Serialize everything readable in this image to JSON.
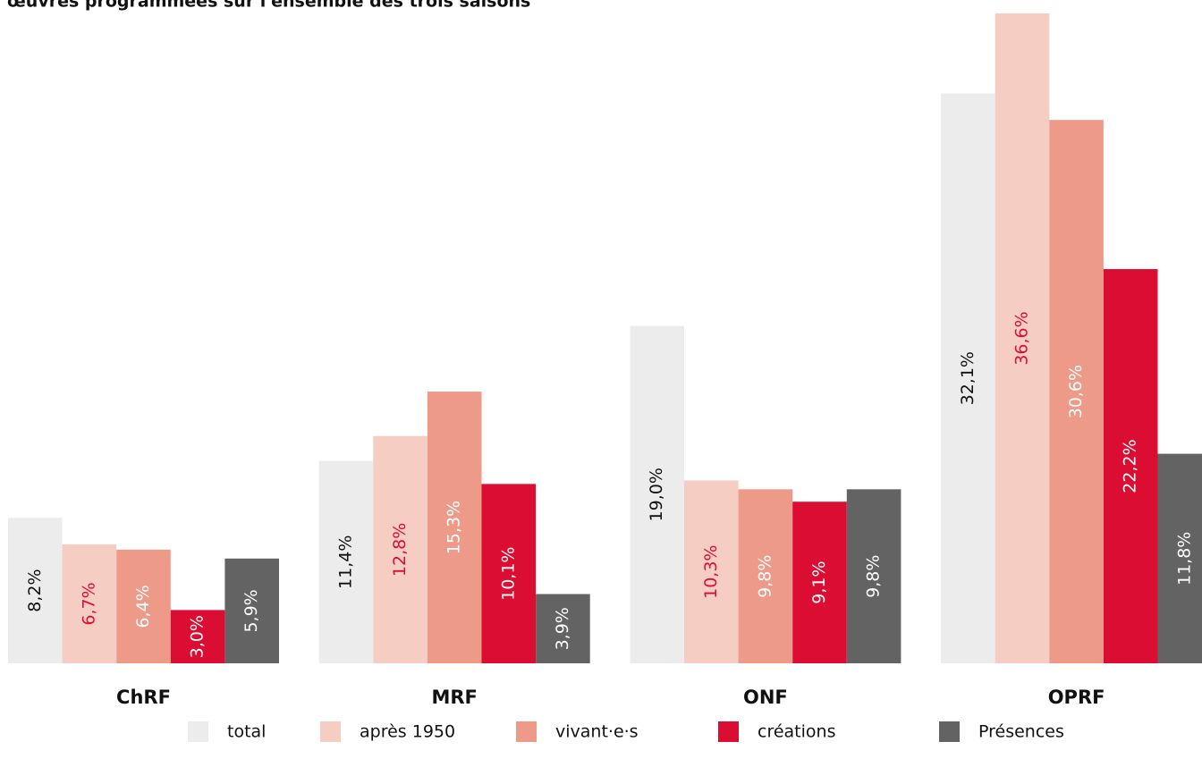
{
  "chart_data": {
    "type": "bar",
    "title": "œuvres programmées sur l'ensemble des trois saisons",
    "categories": [
      "ChRF",
      "MRF",
      "ONF",
      "OPRF"
    ],
    "series": [
      {
        "name": "total",
        "color": "#ececec",
        "label_color": "#111111",
        "values": [
          8.2,
          11.4,
          19.0,
          32.1
        ],
        "value_labels": [
          "8,2%",
          "11,4%",
          "19,0%",
          "32,1%"
        ]
      },
      {
        "name": "après 1950",
        "color": "#f6cdc2",
        "label_color": "#dc0d32",
        "values": [
          6.7,
          12.8,
          10.3,
          36.6
        ],
        "value_labels": [
          "6,7%",
          "12,8%",
          "10,3%",
          "36,6%"
        ]
      },
      {
        "name": "vivant·e·s",
        "color": "#ee9a88",
        "label_color": "#ffffff",
        "values": [
          6.4,
          15.3,
          9.8,
          30.6
        ],
        "value_labels": [
          "6,4%",
          "15,3%",
          "9,8%",
          "30,6%"
        ]
      },
      {
        "name": "créations",
        "color": "#dc0d32",
        "label_color": "#ffffff",
        "values": [
          3.0,
          10.1,
          9.1,
          22.2
        ],
        "value_labels": [
          "3,0%",
          "10,1%",
          "9,1%",
          "22,2%"
        ]
      },
      {
        "name": "Présences",
        "color": "#636363",
        "label_color": "#ffffff",
        "values": [
          5.9,
          3.9,
          9.8,
          11.8
        ],
        "value_labels": [
          "5,9%",
          "3,9%",
          "9,8%",
          "11,8%"
        ]
      }
    ],
    "ylim": [
      0,
      36.6
    ]
  }
}
